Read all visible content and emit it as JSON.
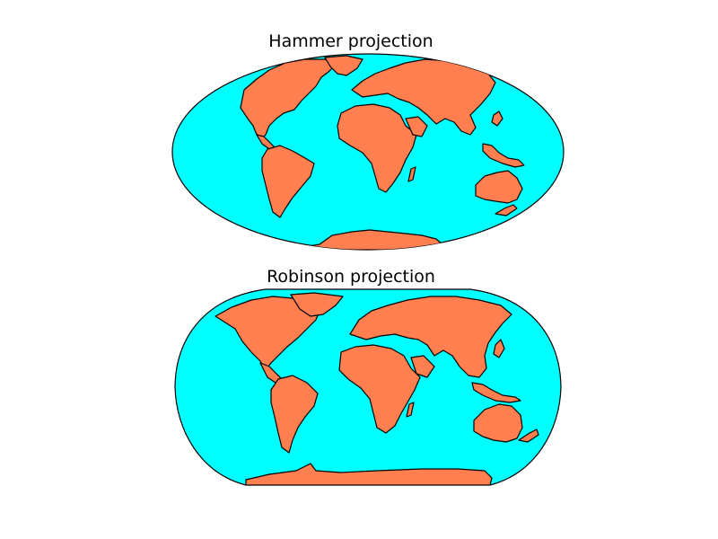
{
  "figure": {
    "ocean_color": "#00ffff",
    "land_color": "#ff7f50",
    "edge_color": "#000000",
    "background": "#ffffff"
  },
  "maps": [
    {
      "title": "Hammer projection",
      "projection": "hammer"
    },
    {
      "title": "Robinson projection",
      "projection": "robinson"
    }
  ]
}
